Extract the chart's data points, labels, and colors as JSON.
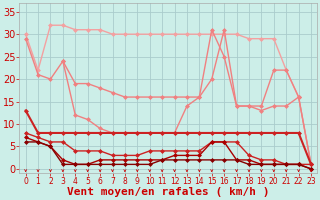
{
  "x": [
    0,
    1,
    2,
    3,
    4,
    5,
    6,
    7,
    8,
    9,
    10,
    11,
    12,
    13,
    14,
    15,
    16,
    17,
    18,
    19,
    20,
    21,
    22,
    23
  ],
  "series": [
    {
      "y": [
        30,
        22,
        32,
        32,
        31,
        31,
        31,
        30,
        30,
        30,
        30,
        30,
        30,
        30,
        30,
        30,
        30,
        30,
        29,
        29,
        29,
        22,
        16,
        null
      ],
      "color": "#f4a0a0",
      "lw": 1.0,
      "marker": "D",
      "ms": 2.5
    },
    {
      "y": [
        29,
        21,
        20,
        24,
        19,
        19,
        18,
        17,
        16,
        16,
        16,
        16,
        16,
        16,
        16,
        31,
        25,
        14,
        14,
        14,
        22,
        22,
        16,
        1
      ],
      "color": "#f08080",
      "lw": 1.0,
      "marker": "D",
      "ms": 2.5
    },
    {
      "y": [
        null,
        null,
        null,
        24,
        12,
        11,
        9,
        8,
        8,
        8,
        8,
        8,
        8,
        14,
        16,
        20,
        31,
        14,
        14,
        13,
        14,
        14,
        16,
        1
      ],
      "color": "#f08080",
      "lw": 1.0,
      "marker": "D",
      "ms": 2.5
    },
    {
      "y": [
        13,
        8,
        8,
        8,
        8,
        8,
        8,
        8,
        8,
        8,
        8,
        8,
        8,
        8,
        8,
        8,
        8,
        8,
        8,
        8,
        8,
        8,
        8,
        1
      ],
      "color": "#cc2222",
      "lw": 1.5,
      "marker": "D",
      "ms": 2.5
    },
    {
      "y": [
        8,
        7,
        6,
        6,
        4,
        4,
        4,
        3,
        3,
        3,
        4,
        4,
        4,
        4,
        4,
        6,
        6,
        6,
        3,
        2,
        2,
        1,
        1,
        1
      ],
      "color": "#cc2222",
      "lw": 1.0,
      "marker": "D",
      "ms": 2.5
    },
    {
      "y": [
        7,
        6,
        5,
        2,
        1,
        1,
        2,
        2,
        2,
        2,
        2,
        2,
        3,
        3,
        3,
        6,
        6,
        2,
        2,
        1,
        1,
        1,
        1,
        0
      ],
      "color": "#aa0000",
      "lw": 1.0,
      "marker": "D",
      "ms": 2.5
    },
    {
      "y": [
        6,
        6,
        5,
        1,
        1,
        1,
        1,
        1,
        1,
        1,
        1,
        2,
        2,
        2,
        2,
        2,
        2,
        2,
        1,
        1,
        1,
        1,
        1,
        0
      ],
      "color": "#880000",
      "lw": 1.0,
      "marker": "D",
      "ms": 2.5
    }
  ],
  "xlabel": "Vent moyen/en rafales ( km/h )",
  "xlim": [
    -0.5,
    23.5
  ],
  "ylim": [
    -1,
    37
  ],
  "yticks": [
    0,
    5,
    10,
    15,
    20,
    25,
    30,
    35
  ],
  "xticks": [
    0,
    1,
    2,
    3,
    4,
    5,
    6,
    7,
    8,
    9,
    10,
    11,
    12,
    13,
    14,
    15,
    16,
    17,
    18,
    19,
    20,
    21,
    22,
    23
  ],
  "bg_color": "#cceee8",
  "grid_color": "#aacccc",
  "tick_color": "#cc0000",
  "label_color": "#cc0000",
  "xlabel_fontsize": 8,
  "ytick_fontsize": 7,
  "xtick_fontsize": 5.5
}
